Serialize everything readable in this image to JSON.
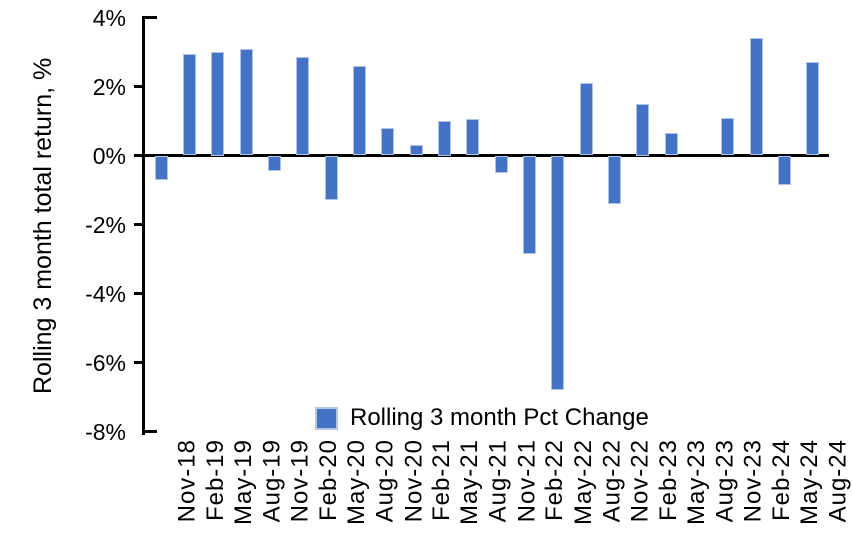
{
  "chart_data": {
    "type": "bar",
    "ylabel": "Rolling 3 month total return, %",
    "legend_label": "Rolling 3 month Pct Change",
    "categories": [
      "Nov-18",
      "Feb-19",
      "May-19",
      "Aug-19",
      "Nov-19",
      "Feb-20",
      "May-20",
      "Aug-20",
      "Nov-20",
      "Feb-21",
      "May-21",
      "Aug-21",
      "Nov-21",
      "Feb-22",
      "May-22",
      "Aug-22",
      "Nov-22",
      "Feb-23",
      "May-23",
      "Aug-23",
      "Nov-23",
      "Feb-24",
      "May-24",
      "Aug-24"
    ],
    "values": [
      -0.7,
      2.95,
      3.0,
      3.1,
      -0.45,
      2.85,
      -1.3,
      2.6,
      0.8,
      0.3,
      1.0,
      1.05,
      -0.5,
      -2.85,
      -6.8,
      2.1,
      -1.4,
      1.5,
      0.65,
      0.0,
      1.1,
      3.4,
      -0.85,
      2.7
    ],
    "ylim": [
      -8,
      4
    ],
    "ytick_step": 2,
    "ytick_labels": [
      "4%",
      "2%",
      "0%",
      "-2%",
      "-4%",
      "-6%",
      "-8%"
    ],
    "grid": false,
    "legend_position": "bottom-center",
    "bar_color": "#4472C4",
    "bar_border_color": "#AEC4EA",
    "axis_color": "#000000",
    "background_color": "#FFFFFF"
  }
}
